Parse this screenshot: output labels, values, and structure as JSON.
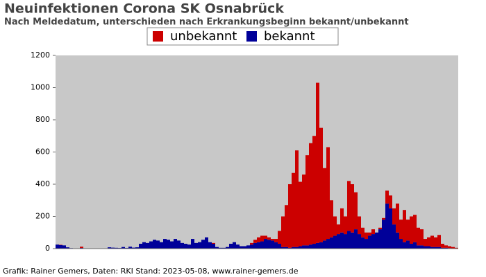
{
  "chart_data": {
    "type": "stacked-bar",
    "title": "Neuinfektionen Corona SK Osnabrück",
    "subtitle": "Nach Meldedatum, unterschieden nach Erkrankungsbeginn bekannt/unbekannt",
    "footer": "Grafik: Rainer Gemers, Daten: RKI Stand: 2023-05-08, www.rainer-gemers.de",
    "categories": [
      null,
      null,
      null,
      null,
      null,
      null,
      null,
      null,
      null,
      null,
      null,
      null,
      null,
      null,
      null,
      null,
      null,
      null,
      null,
      null,
      null,
      null,
      null,
      null,
      null,
      null,
      null,
      null,
      null,
      null,
      null,
      null,
      null,
      null,
      null,
      null,
      null,
      null,
      null,
      null,
      null,
      null,
      null,
      null,
      null,
      null,
      null,
      null,
      null,
      null,
      null,
      null,
      null,
      null,
      null,
      null,
      null,
      null,
      null,
      null,
      null,
      null,
      null,
      null,
      null,
      null,
      null,
      null,
      null,
      null,
      null,
      null,
      null,
      null,
      null,
      null,
      null,
      null,
      null,
      null,
      null,
      null,
      null,
      null,
      null,
      null,
      null,
      null,
      null,
      null,
      null,
      null,
      null,
      null,
      null,
      null,
      null,
      null,
      null,
      null,
      null,
      null,
      null,
      null,
      null,
      null,
      null,
      null,
      null,
      null,
      null,
      null,
      null,
      null,
      null,
      null
    ],
    "series": [
      {
        "name": "unbekannt",
        "color": "#cc0000",
        "values": [
          0,
          2,
          0,
          0,
          0,
          0,
          0,
          8,
          0,
          0,
          0,
          0,
          0,
          0,
          0,
          0,
          0,
          0,
          0,
          0,
          0,
          0,
          0,
          0,
          0,
          0,
          0,
          0,
          0,
          0,
          0,
          0,
          0,
          0,
          0,
          0,
          0,
          0,
          0,
          0,
          0,
          0,
          0,
          0,
          0,
          5,
          0,
          0,
          0,
          0,
          0,
          0,
          0,
          0,
          0,
          0,
          10,
          20,
          30,
          35,
          20,
          15,
          10,
          20,
          80,
          190,
          260,
          395,
          460,
          600,
          400,
          440,
          560,
          630,
          670,
          995,
          710,
          450,
          570,
          230,
          120,
          60,
          150,
          110,
          310,
          300,
          230,
          110,
          60,
          40,
          20,
          30,
          0,
          10,
          10,
          80,
          80,
          100,
          180,
          120,
          200,
          130,
          170,
          170,
          110,
          100,
          45,
          55,
          70,
          60,
          75,
          25,
          15,
          12,
          8,
          3
        ]
      },
      {
        "name": "bekannt",
        "color": "#000099",
        "values": [
          25,
          22,
          20,
          8,
          3,
          2,
          0,
          4,
          0,
          2,
          0,
          0,
          2,
          0,
          0,
          8,
          6,
          5,
          4,
          10,
          4,
          12,
          6,
          8,
          30,
          40,
          35,
          45,
          55,
          50,
          40,
          60,
          55,
          45,
          60,
          50,
          35,
          30,
          25,
          60,
          35,
          40,
          55,
          70,
          40,
          30,
          10,
          5,
          5,
          10,
          30,
          40,
          25,
          15,
          15,
          20,
          25,
          35,
          40,
          45,
          60,
          55,
          50,
          40,
          30,
          10,
          10,
          5,
          10,
          10,
          15,
          20,
          20,
          25,
          30,
          35,
          40,
          50,
          60,
          70,
          80,
          90,
          100,
          90,
          110,
          100,
          120,
          90,
          70,
          60,
          80,
          90,
          100,
          120,
          180,
          280,
          250,
          150,
          100,
          60,
          40,
          50,
          30,
          40,
          20,
          20,
          15,
          15,
          10,
          10,
          10,
          5,
          5,
          3,
          2,
          2
        ]
      }
    ],
    "ylim": [
      0,
      1200
    ],
    "yticks": [
      0,
      200,
      400,
      600,
      800,
      1000,
      1200
    ],
    "grid": false,
    "plot_background": "#c8c8c8"
  }
}
